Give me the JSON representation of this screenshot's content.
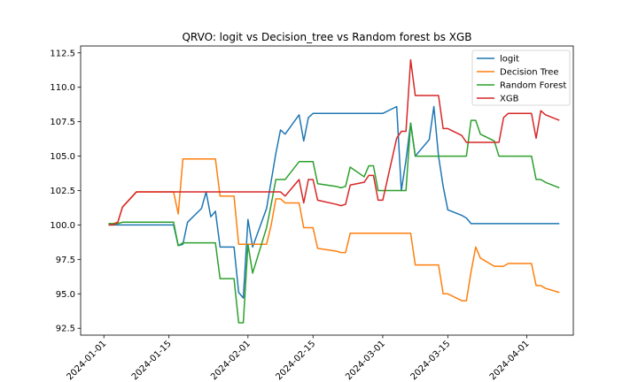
{
  "chart_data": {
    "type": "line",
    "title": "QRVO: logit vs Decision_tree vs Random forest bs XGB",
    "xlabel": "",
    "ylabel": "",
    "xlim": [
      "2023-12-27",
      "2024-04-11"
    ],
    "ylim": [
      92.0,
      113.0
    ],
    "x_ticks": [
      "2024-01-01",
      "2024-01-15",
      "2024-02-01",
      "2024-02-15",
      "2024-03-01",
      "2024-03-15",
      "2024-04-01"
    ],
    "y_ticks": [
      92.5,
      95.0,
      97.5,
      100.0,
      102.5,
      105.0,
      107.5,
      110.0,
      112.5
    ],
    "legend_position": "top-right",
    "series": [
      {
        "name": "logit",
        "color": "#1f77b4",
        "points": [
          [
            "2024-01-02",
            100.0
          ],
          [
            "2024-01-03",
            100.0
          ],
          [
            "2024-01-04",
            100.0
          ],
          [
            "2024-01-05",
            100.0
          ],
          [
            "2024-01-08",
            100.0
          ],
          [
            "2024-01-09",
            100.0
          ],
          [
            "2024-01-10",
            100.0
          ],
          [
            "2024-01-11",
            100.0
          ],
          [
            "2024-01-12",
            100.0
          ],
          [
            "2024-01-16",
            100.0
          ],
          [
            "2024-01-17",
            98.5
          ],
          [
            "2024-01-18",
            98.6
          ],
          [
            "2024-01-19",
            100.2
          ],
          [
            "2024-01-22",
            101.2
          ],
          [
            "2024-01-23",
            102.4
          ],
          [
            "2024-01-24",
            100.6
          ],
          [
            "2024-01-25",
            101.0
          ],
          [
            "2024-01-26",
            98.4
          ],
          [
            "2024-01-29",
            98.4
          ],
          [
            "2024-01-30",
            95.1
          ],
          [
            "2024-01-31",
            94.7
          ],
          [
            "2024-02-01",
            100.4
          ],
          [
            "2024-02-02",
            98.4
          ],
          [
            "2024-02-05",
            101.2
          ],
          [
            "2024-02-06",
            103.2
          ],
          [
            "2024-02-07",
            105.2
          ],
          [
            "2024-02-08",
            106.9
          ],
          [
            "2024-02-09",
            106.6
          ],
          [
            "2024-02-12",
            108.0
          ],
          [
            "2024-02-13",
            106.1
          ],
          [
            "2024-02-14",
            107.8
          ],
          [
            "2024-02-15",
            108.1
          ],
          [
            "2024-02-16",
            108.1
          ],
          [
            "2024-02-20",
            108.1
          ],
          [
            "2024-02-21",
            108.1
          ],
          [
            "2024-02-22",
            108.1
          ],
          [
            "2024-02-23",
            108.1
          ],
          [
            "2024-02-26",
            108.1
          ],
          [
            "2024-02-27",
            108.1
          ],
          [
            "2024-02-28",
            108.1
          ],
          [
            "2024-02-29",
            108.1
          ],
          [
            "2024-03-01",
            108.1
          ],
          [
            "2024-03-04",
            108.6
          ],
          [
            "2024-03-05",
            102.5
          ],
          [
            "2024-03-06",
            104.7
          ],
          [
            "2024-03-07",
            107.4
          ],
          [
            "2024-03-08",
            105.0
          ],
          [
            "2024-03-11",
            106.2
          ],
          [
            "2024-03-12",
            108.6
          ],
          [
            "2024-03-13",
            105.0
          ],
          [
            "2024-03-14",
            102.8
          ],
          [
            "2024-03-15",
            101.1
          ],
          [
            "2024-03-18",
            100.7
          ],
          [
            "2024-03-19",
            100.5
          ],
          [
            "2024-03-20",
            100.1
          ],
          [
            "2024-03-21",
            100.1
          ],
          [
            "2024-03-22",
            100.1
          ],
          [
            "2024-03-25",
            100.1
          ],
          [
            "2024-03-26",
            100.1
          ],
          [
            "2024-03-27",
            100.1
          ],
          [
            "2024-03-28",
            100.1
          ],
          [
            "2024-04-01",
            100.1
          ],
          [
            "2024-04-02",
            100.1
          ],
          [
            "2024-04-03",
            100.1
          ],
          [
            "2024-04-04",
            100.1
          ],
          [
            "2024-04-05",
            100.1
          ],
          [
            "2024-04-08",
            100.1
          ]
        ]
      },
      {
        "name": "Decision Tree",
        "color": "#ff7f0e",
        "points": [
          [
            "2024-01-02",
            100.1
          ],
          [
            "2024-01-03",
            100.1
          ],
          [
            "2024-01-04",
            100.2
          ],
          [
            "2024-01-05",
            101.3
          ],
          [
            "2024-01-08",
            102.4
          ],
          [
            "2024-01-09",
            102.4
          ],
          [
            "2024-01-10",
            102.4
          ],
          [
            "2024-01-11",
            102.4
          ],
          [
            "2024-01-12",
            102.4
          ],
          [
            "2024-01-16",
            102.4
          ],
          [
            "2024-01-17",
            100.8
          ],
          [
            "2024-01-18",
            104.8
          ],
          [
            "2024-01-19",
            104.8
          ],
          [
            "2024-01-22",
            104.8
          ],
          [
            "2024-01-23",
            104.8
          ],
          [
            "2024-01-24",
            104.8
          ],
          [
            "2024-01-25",
            104.8
          ],
          [
            "2024-01-26",
            102.1
          ],
          [
            "2024-01-29",
            102.1
          ],
          [
            "2024-01-30",
            98.6
          ],
          [
            "2024-01-31",
            98.6
          ],
          [
            "2024-02-01",
            98.6
          ],
          [
            "2024-02-02",
            98.6
          ],
          [
            "2024-02-05",
            98.6
          ],
          [
            "2024-02-06",
            100.0
          ],
          [
            "2024-02-07",
            101.9
          ],
          [
            "2024-02-08",
            101.9
          ],
          [
            "2024-02-09",
            101.6
          ],
          [
            "2024-02-12",
            101.6
          ],
          [
            "2024-02-13",
            99.8
          ],
          [
            "2024-02-14",
            99.8
          ],
          [
            "2024-02-15",
            99.8
          ],
          [
            "2024-02-16",
            98.3
          ],
          [
            "2024-02-20",
            98.1
          ],
          [
            "2024-02-21",
            98.0
          ],
          [
            "2024-02-22",
            98.0
          ],
          [
            "2024-02-23",
            99.4
          ],
          [
            "2024-02-26",
            99.4
          ],
          [
            "2024-02-27",
            99.4
          ],
          [
            "2024-02-28",
            99.4
          ],
          [
            "2024-02-29",
            99.4
          ],
          [
            "2024-03-01",
            99.4
          ],
          [
            "2024-03-04",
            99.4
          ],
          [
            "2024-03-05",
            99.4
          ],
          [
            "2024-03-06",
            99.4
          ],
          [
            "2024-03-07",
            99.4
          ],
          [
            "2024-03-08",
            97.1
          ],
          [
            "2024-03-11",
            97.1
          ],
          [
            "2024-03-12",
            97.1
          ],
          [
            "2024-03-13",
            97.1
          ],
          [
            "2024-03-14",
            95.0
          ],
          [
            "2024-03-15",
            95.0
          ],
          [
            "2024-03-18",
            94.5
          ],
          [
            "2024-03-19",
            94.5
          ],
          [
            "2024-03-20",
            96.6
          ],
          [
            "2024-03-21",
            98.4
          ],
          [
            "2024-03-22",
            97.6
          ],
          [
            "2024-03-25",
            97.0
          ],
          [
            "2024-03-26",
            97.0
          ],
          [
            "2024-03-27",
            97.0
          ],
          [
            "2024-03-28",
            97.2
          ],
          [
            "2024-04-01",
            97.2
          ],
          [
            "2024-04-02",
            97.2
          ],
          [
            "2024-04-03",
            95.6
          ],
          [
            "2024-04-04",
            95.6
          ],
          [
            "2024-04-05",
            95.4
          ],
          [
            "2024-04-08",
            95.1
          ]
        ]
      },
      {
        "name": "Random Forest",
        "color": "#2ca02c",
        "points": [
          [
            "2024-01-02",
            100.1
          ],
          [
            "2024-01-03",
            100.1
          ],
          [
            "2024-01-04",
            100.1
          ],
          [
            "2024-01-05",
            100.2
          ],
          [
            "2024-01-08",
            100.2
          ],
          [
            "2024-01-09",
            100.2
          ],
          [
            "2024-01-10",
            100.2
          ],
          [
            "2024-01-11",
            100.2
          ],
          [
            "2024-01-12",
            100.2
          ],
          [
            "2024-01-16",
            100.2
          ],
          [
            "2024-01-17",
            98.5
          ],
          [
            "2024-01-18",
            98.7
          ],
          [
            "2024-01-19",
            98.7
          ],
          [
            "2024-01-22",
            98.7
          ],
          [
            "2024-01-23",
            98.7
          ],
          [
            "2024-01-24",
            98.7
          ],
          [
            "2024-01-25",
            98.7
          ],
          [
            "2024-01-26",
            96.1
          ],
          [
            "2024-01-29",
            96.1
          ],
          [
            "2024-01-30",
            92.9
          ],
          [
            "2024-01-31",
            92.9
          ],
          [
            "2024-02-01",
            98.6
          ],
          [
            "2024-02-02",
            96.5
          ],
          [
            "2024-02-05",
            99.8
          ],
          [
            "2024-02-06",
            101.5
          ],
          [
            "2024-02-07",
            103.3
          ],
          [
            "2024-02-08",
            103.3
          ],
          [
            "2024-02-09",
            103.3
          ],
          [
            "2024-02-12",
            104.6
          ],
          [
            "2024-02-13",
            104.6
          ],
          [
            "2024-02-14",
            104.6
          ],
          [
            "2024-02-15",
            104.6
          ],
          [
            "2024-02-16",
            103.0
          ],
          [
            "2024-02-20",
            102.8
          ],
          [
            "2024-02-21",
            102.7
          ],
          [
            "2024-02-22",
            102.8
          ],
          [
            "2024-02-23",
            104.2
          ],
          [
            "2024-02-26",
            103.5
          ],
          [
            "2024-02-27",
            104.3
          ],
          [
            "2024-02-28",
            104.3
          ],
          [
            "2024-02-29",
            102.5
          ],
          [
            "2024-03-01",
            102.5
          ],
          [
            "2024-03-04",
            102.5
          ],
          [
            "2024-03-05",
            102.5
          ],
          [
            "2024-03-06",
            102.5
          ],
          [
            "2024-03-07",
            107.4
          ],
          [
            "2024-03-08",
            105.0
          ],
          [
            "2024-03-11",
            105.0
          ],
          [
            "2024-03-12",
            105.0
          ],
          [
            "2024-03-13",
            105.0
          ],
          [
            "2024-03-14",
            105.0
          ],
          [
            "2024-03-15",
            105.0
          ],
          [
            "2024-03-18",
            105.0
          ],
          [
            "2024-03-19",
            105.0
          ],
          [
            "2024-03-20",
            107.6
          ],
          [
            "2024-03-21",
            107.6
          ],
          [
            "2024-03-22",
            106.6
          ],
          [
            "2024-03-25",
            106.1
          ],
          [
            "2024-03-26",
            105.0
          ],
          [
            "2024-03-27",
            105.0
          ],
          [
            "2024-03-28",
            105.0
          ],
          [
            "2024-04-01",
            105.0
          ],
          [
            "2024-04-02",
            105.0
          ],
          [
            "2024-04-03",
            103.3
          ],
          [
            "2024-04-04",
            103.3
          ],
          [
            "2024-04-05",
            103.1
          ],
          [
            "2024-04-08",
            102.7
          ]
        ]
      },
      {
        "name": "XGB",
        "color": "#d62728",
        "points": [
          [
            "2024-01-02",
            100.0
          ],
          [
            "2024-01-03",
            100.0
          ],
          [
            "2024-01-04",
            100.2
          ],
          [
            "2024-01-05",
            101.3
          ],
          [
            "2024-01-08",
            102.4
          ],
          [
            "2024-01-09",
            102.4
          ],
          [
            "2024-01-10",
            102.4
          ],
          [
            "2024-01-11",
            102.4
          ],
          [
            "2024-01-12",
            102.4
          ],
          [
            "2024-01-16",
            102.4
          ],
          [
            "2024-01-17",
            102.4
          ],
          [
            "2024-01-18",
            102.4
          ],
          [
            "2024-01-19",
            102.4
          ],
          [
            "2024-01-22",
            102.4
          ],
          [
            "2024-01-23",
            102.4
          ],
          [
            "2024-01-24",
            102.4
          ],
          [
            "2024-01-25",
            102.4
          ],
          [
            "2024-01-26",
            102.4
          ],
          [
            "2024-01-29",
            102.4
          ],
          [
            "2024-01-30",
            102.4
          ],
          [
            "2024-01-31",
            102.4
          ],
          [
            "2024-02-01",
            102.4
          ],
          [
            "2024-02-02",
            102.4
          ],
          [
            "2024-02-05",
            102.4
          ],
          [
            "2024-02-06",
            102.4
          ],
          [
            "2024-02-07",
            102.4
          ],
          [
            "2024-02-08",
            102.4
          ],
          [
            "2024-02-09",
            102.1
          ],
          [
            "2024-02-12",
            103.3
          ],
          [
            "2024-02-13",
            101.6
          ],
          [
            "2024-02-14",
            103.3
          ],
          [
            "2024-02-15",
            103.3
          ],
          [
            "2024-02-16",
            101.8
          ],
          [
            "2024-02-20",
            101.5
          ],
          [
            "2024-02-21",
            101.4
          ],
          [
            "2024-02-22",
            101.5
          ],
          [
            "2024-02-23",
            102.9
          ],
          [
            "2024-02-26",
            103.1
          ],
          [
            "2024-02-27",
            103.6
          ],
          [
            "2024-02-28",
            103.6
          ],
          [
            "2024-02-29",
            101.8
          ],
          [
            "2024-03-01",
            101.8
          ],
          [
            "2024-03-04",
            106.3
          ],
          [
            "2024-03-05",
            106.8
          ],
          [
            "2024-03-06",
            106.8
          ],
          [
            "2024-03-07",
            112.0
          ],
          [
            "2024-03-08",
            109.4
          ],
          [
            "2024-03-11",
            109.4
          ],
          [
            "2024-03-12",
            109.4
          ],
          [
            "2024-03-13",
            109.4
          ],
          [
            "2024-03-14",
            107.0
          ],
          [
            "2024-03-15",
            107.0
          ],
          [
            "2024-03-18",
            106.5
          ],
          [
            "2024-03-19",
            106.0
          ],
          [
            "2024-03-20",
            106.0
          ],
          [
            "2024-03-21",
            106.0
          ],
          [
            "2024-03-22",
            106.0
          ],
          [
            "2024-03-25",
            106.0
          ],
          [
            "2024-03-26",
            106.0
          ],
          [
            "2024-03-27",
            107.8
          ],
          [
            "2024-03-28",
            108.1
          ],
          [
            "2024-04-01",
            108.1
          ],
          [
            "2024-04-02",
            108.1
          ],
          [
            "2024-04-03",
            106.3
          ],
          [
            "2024-04-04",
            108.3
          ],
          [
            "2024-04-05",
            108.0
          ],
          [
            "2024-04-08",
            107.6
          ]
        ]
      }
    ]
  }
}
